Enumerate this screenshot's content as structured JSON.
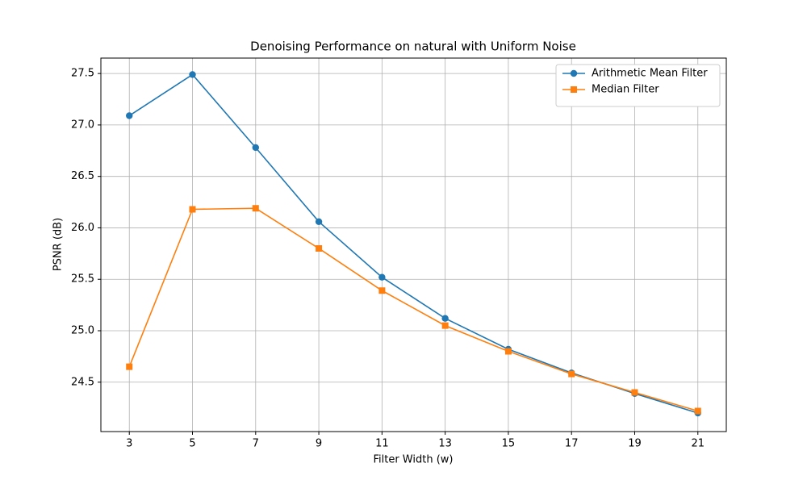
{
  "chart_data": {
    "type": "line",
    "title": "Denoising Performance on natural with Uniform Noise",
    "x_label": "Filter Width (w)",
    "y_label": "PSNR (dB)",
    "x": [
      3,
      5,
      7,
      9,
      11,
      13,
      15,
      17,
      19,
      21
    ],
    "series": [
      {
        "name": "Arithmetic Mean Filter",
        "color": "#1f77b4",
        "marker": "circle",
        "values": [
          27.09,
          27.49,
          26.78,
          26.06,
          25.52,
          25.12,
          24.82,
          24.59,
          24.39,
          24.2
        ]
      },
      {
        "name": "Median Filter",
        "color": "#ff7f0e",
        "marker": "square",
        "values": [
          24.65,
          26.18,
          26.19,
          25.8,
          25.39,
          25.05,
          24.8,
          24.58,
          24.4,
          24.22
        ]
      }
    ],
    "xlim": [
      2.1,
      21.9
    ],
    "xticks": [
      3,
      5,
      7,
      9,
      11,
      13,
      15,
      17,
      19,
      21
    ],
    "ylim": [
      24.02,
      27.65
    ],
    "yticks": [
      24.5,
      {
        "value": 25,
        "label": "25.0"
      },
      25.5,
      {
        "value": 26,
        "label": "26.0"
      },
      26.5,
      {
        "value": 27,
        "label": "27.0"
      },
      27.5
    ],
    "grid": true,
    "legend": "upper right"
  }
}
